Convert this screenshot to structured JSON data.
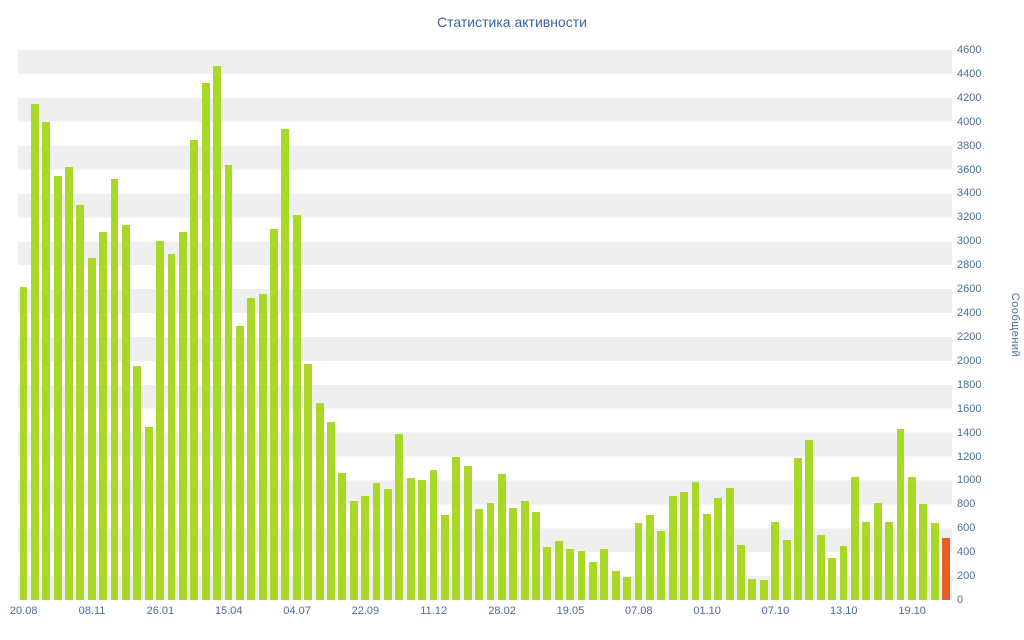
{
  "title": "Статистика активности",
  "chart_data": {
    "type": "bar",
    "title": "Статистика активности",
    "xlabel": "",
    "ylabel": "Сообщений",
    "ylim": [
      0,
      4600
    ],
    "y_tick_step": 200,
    "y_ticks": [
      0,
      200,
      400,
      600,
      800,
      1000,
      1200,
      1400,
      1600,
      1800,
      2000,
      2200,
      2400,
      2600,
      2800,
      3000,
      3200,
      3400,
      3600,
      3800,
      4000,
      4200,
      4400,
      4600
    ],
    "x_tick_labels": [
      "20.08",
      "08.11",
      "26.01",
      "15.04",
      "04.07",
      "22.09",
      "11.12",
      "28.02",
      "19.05",
      "07.08",
      "01.10",
      "07.10",
      "13.10",
      "19.10"
    ],
    "x_tick_indices": [
      0,
      6,
      12,
      18,
      24,
      30,
      36,
      42,
      48,
      54,
      60,
      66,
      72,
      78
    ],
    "values": [
      2620,
      4150,
      4000,
      3550,
      3620,
      3300,
      2860,
      3080,
      3520,
      3140,
      1960,
      1450,
      3000,
      2890,
      3080,
      3850,
      4320,
      4470,
      3640,
      2290,
      2530,
      2560,
      3100,
      3940,
      3220,
      1970,
      1650,
      1490,
      1060,
      830,
      870,
      980,
      930,
      1390,
      1020,
      1000,
      1090,
      710,
      1200,
      1120,
      760,
      810,
      1050,
      770,
      830,
      740,
      440,
      490,
      430,
      410,
      320,
      430,
      240,
      190,
      640,
      710,
      580,
      870,
      900,
      990,
      720,
      850,
      940,
      460,
      175,
      165,
      650,
      500,
      1190,
      1340,
      540,
      350,
      450,
      1030,
      650,
      810,
      650,
      1430,
      1030,
      800,
      645,
      520
    ],
    "highlight_last_bar": true,
    "legend_position": "none",
    "grid": "horizontal-stripes",
    "colors": {
      "bar": "#a9d827",
      "highlight": "#e55f27",
      "title_text": "#3c62a0",
      "axis_text": "#4d6d96",
      "stripe": "#efefef",
      "background": "#ffffff"
    }
  }
}
